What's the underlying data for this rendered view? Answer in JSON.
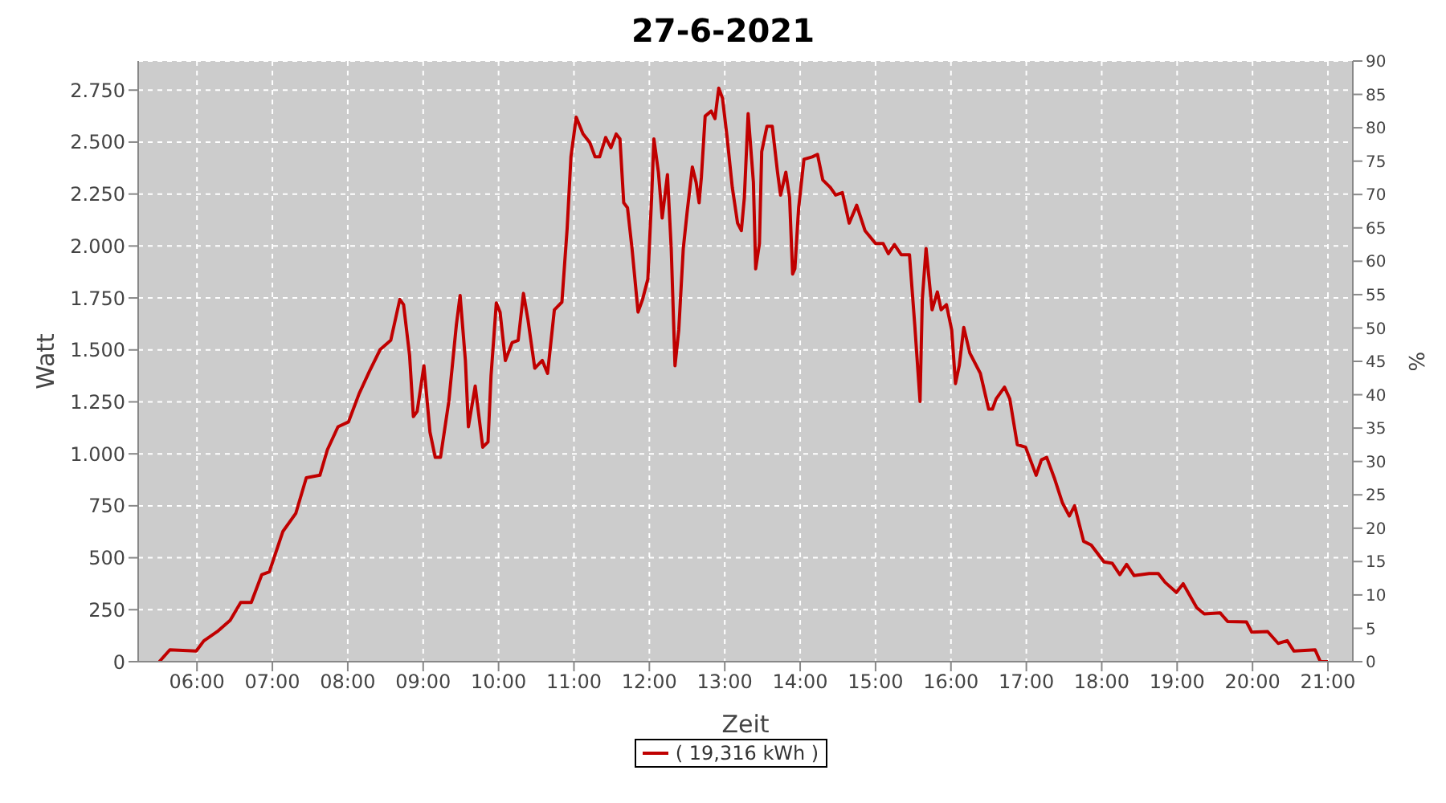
{
  "chart_data": {
    "type": "line",
    "title": "27-6-2021",
    "xlabel": "Zeit",
    "ylabel": "Watt",
    "y2label": "%",
    "x": [
      5.5,
      5.64,
      5.99,
      6.09,
      6.27,
      6.44,
      6.58,
      6.72,
      6.86,
      6.96,
      7.14,
      7.31,
      7.45,
      7.63,
      7.73,
      7.87,
      8.01,
      8.15,
      8.29,
      8.43,
      8.57,
      8.69,
      8.74,
      8.82,
      8.87,
      8.92,
      9.01,
      9.09,
      9.16,
      9.23,
      9.34,
      9.44,
      9.49,
      9.56,
      9.6,
      9.69,
      9.79,
      9.86,
      9.9,
      9.97,
      10.02,
      10.09,
      10.18,
      10.26,
      10.33,
      10.39,
      10.48,
      10.58,
      10.65,
      10.74,
      10.84,
      10.91,
      10.96,
      11.03,
      11.12,
      11.21,
      11.28,
      11.34,
      11.42,
      11.49,
      11.56,
      11.61,
      11.66,
      11.71,
      11.77,
      11.85,
      11.91,
      11.98,
      12.03,
      12.06,
      12.12,
      12.17,
      12.24,
      12.29,
      12.34,
      12.39,
      12.45,
      12.5,
      12.57,
      12.62,
      12.66,
      12.69,
      12.74,
      12.82,
      12.87,
      12.92,
      12.97,
      13.03,
      13.1,
      13.17,
      13.22,
      13.26,
      13.31,
      13.38,
      13.41,
      13.46,
      13.49,
      13.56,
      13.63,
      13.7,
      13.74,
      13.81,
      13.86,
      13.9,
      13.93,
      13.98,
      14.05,
      14.16,
      14.23,
      14.3,
      14.4,
      14.47,
      14.56,
      14.65,
      14.75,
      14.86,
      15.0,
      15.1,
      15.17,
      15.25,
      15.34,
      15.45,
      15.52,
      15.59,
      15.62,
      15.67,
      15.75,
      15.82,
      15.87,
      15.94,
      16.01,
      16.06,
      16.11,
      16.17,
      16.25,
      16.39,
      16.5,
      16.55,
      16.6,
      16.71,
      16.78,
      16.88,
      16.99,
      17.13,
      17.2,
      17.27,
      17.37,
      17.48,
      17.57,
      17.64,
      17.76,
      17.86,
      18.03,
      18.14,
      18.24,
      18.33,
      18.43,
      18.63,
      18.75,
      18.84,
      18.99,
      19.08,
      19.26,
      19.36,
      19.57,
      19.67,
      19.92,
      19.99,
      20.2,
      20.34,
      20.46,
      20.55,
      20.83,
      20.9,
      21.0
    ],
    "series": [
      {
        "name": "( 19,316 kWh )",
        "color": "#c00000",
        "values": [
          0,
          57,
          51,
          100,
          145,
          199,
          285,
          285,
          419,
          432,
          627,
          713,
          885,
          897,
          1020,
          1130,
          1154,
          1289,
          1399,
          1502,
          1546,
          1743,
          1718,
          1473,
          1179,
          1204,
          1424,
          1105,
          983,
          983,
          1252,
          1620,
          1762,
          1449,
          1130,
          1326,
          1032,
          1057,
          1375,
          1726,
          1682,
          1449,
          1535,
          1546,
          1772,
          1645,
          1412,
          1449,
          1387,
          1693,
          1730,
          2086,
          2429,
          2620,
          2539,
          2498,
          2429,
          2429,
          2522,
          2473,
          2539,
          2515,
          2208,
          2184,
          1988,
          1682,
          1743,
          1841,
          2233,
          2515,
          2355,
          2135,
          2343,
          1988,
          1424,
          1596,
          1988,
          2160,
          2380,
          2307,
          2208,
          2331,
          2625,
          2649,
          2613,
          2760,
          2711,
          2527,
          2282,
          2110,
          2074,
          2233,
          2637,
          2307,
          1890,
          2012,
          2454,
          2576,
          2576,
          2355,
          2245,
          2355,
          2233,
          1865,
          1890,
          2184,
          2417,
          2429,
          2441,
          2318,
          2282,
          2245,
          2257,
          2110,
          2196,
          2074,
          2012,
          2012,
          1963,
          2007,
          1958,
          1958,
          1620,
          1252,
          1743,
          1988,
          1693,
          1779,
          1693,
          1718,
          1596,
          1338,
          1424,
          1608,
          1485,
          1387,
          1215,
          1215,
          1265,
          1321,
          1265,
          1044,
          1032,
          897,
          971,
          983,
          885,
          763,
          701,
          750,
          579,
          561,
          480,
          473,
          419,
          468,
          414,
          424,
          424,
          382,
          333,
          375,
          260,
          230,
          235,
          193,
          191,
          142,
          145,
          88,
          101,
          51,
          57,
          0,
          0
        ]
      }
    ],
    "xlim": [
      5.22,
      21.33
    ],
    "xticks": [
      {
        "value": 6,
        "label": "06:00"
      },
      {
        "value": 7,
        "label": "07:00"
      },
      {
        "value": 8,
        "label": "08:00"
      },
      {
        "value": 9,
        "label": "09:00"
      },
      {
        "value": 10,
        "label": "10:00"
      },
      {
        "value": 11,
        "label": "11:00"
      },
      {
        "value": 12,
        "label": "12:00"
      },
      {
        "value": 13,
        "label": "13:00"
      },
      {
        "value": 14,
        "label": "14:00"
      },
      {
        "value": 15,
        "label": "15:00"
      },
      {
        "value": 16,
        "label": "16:00"
      },
      {
        "value": 17,
        "label": "17:00"
      },
      {
        "value": 18,
        "label": "18:00"
      },
      {
        "value": 19,
        "label": "19:00"
      },
      {
        "value": 20,
        "label": "20:00"
      },
      {
        "value": 21,
        "label": "21:00"
      }
    ],
    "ylim": [
      0,
      2890
    ],
    "yticks": [
      0,
      250,
      500,
      750,
      {
        "value": 1000,
        "label": "1.000"
      },
      {
        "value": 1250,
        "label": "1.250"
      },
      {
        "value": 1500,
        "label": "1.500"
      },
      {
        "value": 1750,
        "label": "1.750"
      },
      {
        "value": 2000,
        "label": "2.000"
      },
      {
        "value": 2250,
        "label": "2.250"
      },
      {
        "value": 2500,
        "label": "2.500"
      },
      {
        "value": 2750,
        "label": "2.750"
      }
    ],
    "y2lim": [
      0,
      90
    ],
    "y2ticks": [
      0,
      5,
      10,
      15,
      20,
      25,
      30,
      35,
      40,
      45,
      50,
      55,
      60,
      65,
      70,
      75,
      80,
      85,
      90
    ],
    "grid": true,
    "legend": "bottom",
    "line_style": "solid"
  }
}
